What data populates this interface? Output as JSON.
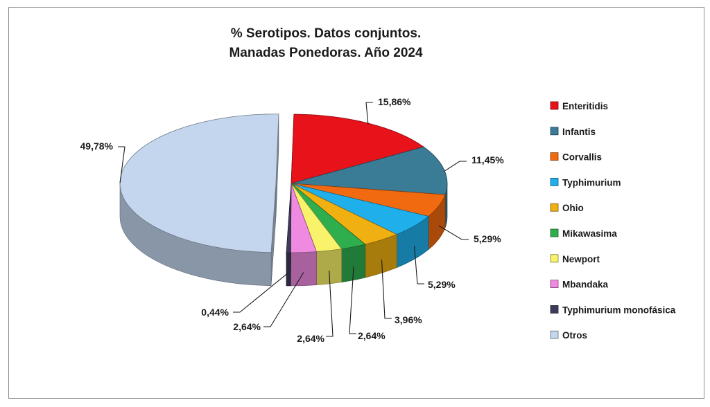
{
  "chart_data": {
    "type": "pie",
    "title": [
      "% Serotipos. Datos conjuntos.",
      "Manadas Ponedoras. Año 2024"
    ],
    "legend_position": "right",
    "slices": [
      {
        "name": "Enteritidis",
        "value": 15.86,
        "label": "15,86%",
        "color": "#e8121a",
        "show_label": true
      },
      {
        "name": "Infantis",
        "value": 11.45,
        "label": "11,45%",
        "color": "#3a7b95",
        "show_label": true
      },
      {
        "name": "Corvallis",
        "value": 5.29,
        "label": "5,29%",
        "color": "#f26a10",
        "show_label": true
      },
      {
        "name": "Typhimurium",
        "value": 5.29,
        "label": "5,29%",
        "color": "#1fb0ec",
        "show_label": true
      },
      {
        "name": "Ohio",
        "value": 3.96,
        "label": "3,96%",
        "color": "#f0b012",
        "show_label": true
      },
      {
        "name": "Mikawasima",
        "value": 2.64,
        "label": "2,64%",
        "color": "#2fae4e",
        "show_label": true
      },
      {
        "name": "Newport",
        "value": 2.64,
        "label": "2,64%",
        "color": "#f8f36a",
        "show_label": true
      },
      {
        "name": "Mbandaka",
        "value": 2.64,
        "label": "2,64%",
        "color": "#f08ae0",
        "show_label": true
      },
      {
        "name": "Typhimurium monofásica",
        "value": 0.44,
        "label": "0,44%",
        "color": "#3c3c5a",
        "show_label": true
      },
      {
        "name": "Otros",
        "value": 49.78,
        "label": "49,78%",
        "color": "#c4d6ee",
        "show_label": true
      }
    ]
  }
}
